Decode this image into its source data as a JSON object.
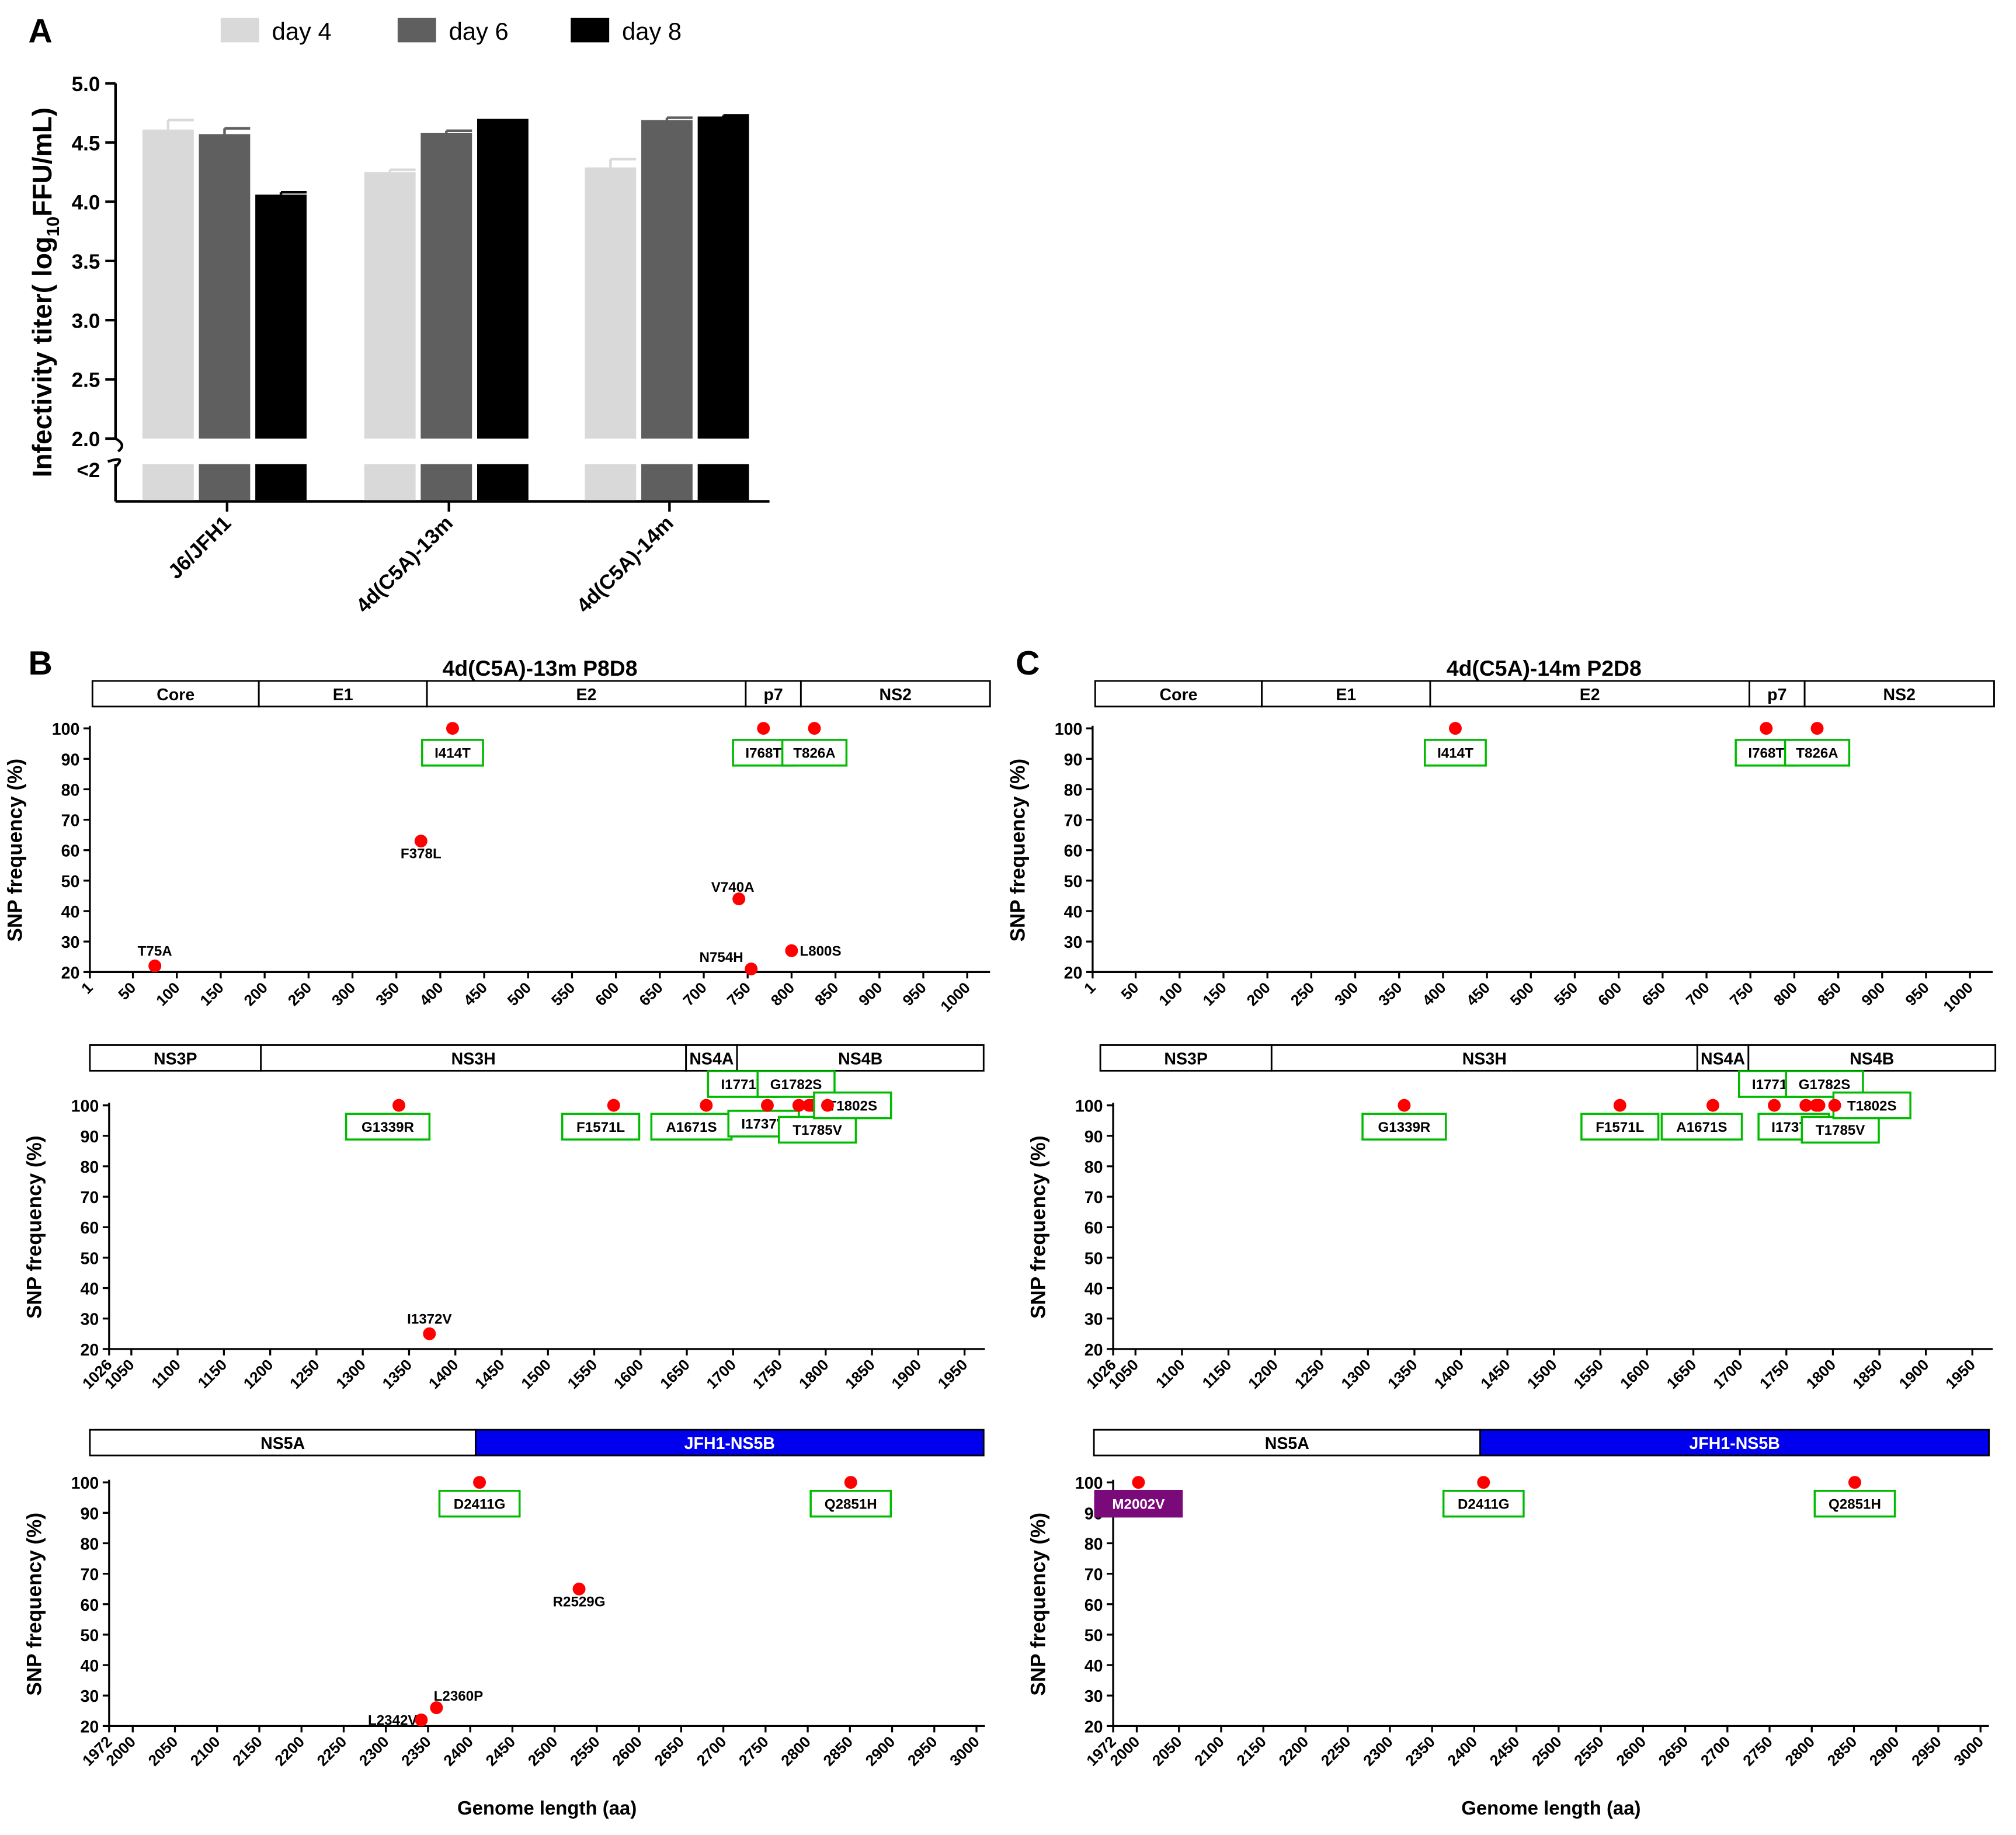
{
  "panel_a": {
    "letter": "A",
    "legend": [
      {
        "label": "day 4",
        "color": "#d9d9d9"
      },
      {
        "label": "day 6",
        "color": "#5f5f5f"
      },
      {
        "label": "day 8",
        "color": "#000000"
      }
    ],
    "ylabel_main": "Infectivity titer( log",
    "ylabel_sub": "10",
    "ylabel_end": "FFU/mL)",
    "lower_label": "<2",
    "chart_data": {
      "type": "bar",
      "categories": [
        "J6/JFH1",
        "4d(C5A)-13m",
        "4d(C5A)-14m"
      ],
      "series": [
        {
          "name": "day 4",
          "values": [
            4.61,
            4.25,
            4.29
          ],
          "errors": [
            0.08,
            0.02,
            0.07
          ]
        },
        {
          "name": "day 6",
          "values": [
            4.57,
            4.58,
            4.69
          ],
          "errors": [
            0.05,
            0.02,
            0.02
          ]
        },
        {
          "name": "day 8",
          "values": [
            4.06,
            4.7,
            4.72
          ],
          "errors": [
            0.02,
            0.0,
            0.01
          ]
        }
      ],
      "ylim": [
        2.0,
        5.0
      ],
      "yticks": [
        "2.0",
        "2.5",
        "3.0",
        "3.5",
        "4.0",
        "4.5",
        "5.0"
      ]
    }
  },
  "panel_b": {
    "letter": "B",
    "title": "4d(C5A)-13m P8D8"
  },
  "panel_c": {
    "letter": "C",
    "title": "4d(C5A)-14m P2D8"
  },
  "rows": [
    {
      "domains": [
        {
          "label": "Core",
          "start": 1,
          "end": 191
        },
        {
          "label": "E1",
          "start": 191,
          "end": 383
        },
        {
          "label": "E2",
          "start": 383,
          "end": 747
        },
        {
          "label": "p7",
          "start": 747,
          "end": 810
        },
        {
          "label": "NS2",
          "start": 810,
          "end": 1026
        }
      ],
      "xticks": [
        "1",
        "50",
        "100",
        "150",
        "200",
        "250",
        "300",
        "350",
        "400",
        "450",
        "500",
        "550",
        "600",
        "650",
        "700",
        "750",
        "800",
        "850",
        "900",
        "950",
        "1000"
      ],
      "xlim": [
        1,
        1026
      ]
    },
    {
      "domains": [
        {
          "label": "NS3P",
          "start": 1026,
          "end": 1207
        },
        {
          "label": "NS3H",
          "start": 1207,
          "end": 1657
        },
        {
          "label": "NS4A",
          "start": 1657,
          "end": 1711
        },
        {
          "label": "NS4B",
          "start": 1711,
          "end": 1972
        }
      ],
      "xticks": [
        "1026",
        "1050",
        "1100",
        "1150",
        "1200",
        "1250",
        "1300",
        "1350",
        "1400",
        "1450",
        "1500",
        "1550",
        "1600",
        "1650",
        "1700",
        "1750",
        "1800",
        "1850",
        "1900",
        "1950"
      ],
      "xlim": [
        1026,
        1972
      ]
    },
    {
      "domains": [
        {
          "label": "NS5A",
          "start": 1972,
          "end": 2420,
          "fill": "#ffffff",
          "text": "#000000"
        },
        {
          "label": "JFH1-NS5B",
          "start": 2420,
          "end": 3010,
          "fill": "#0000ee",
          "text": "#ffffff"
        }
      ],
      "xticks": [
        "1972",
        "2000",
        "2050",
        "2100",
        "2150",
        "2200",
        "2250",
        "2300",
        "2350",
        "2400",
        "2450",
        "2500",
        "2550",
        "2600",
        "2650",
        "2700",
        "2750",
        "2800",
        "2850",
        "2900",
        "2950",
        "3000"
      ],
      "xlim": [
        1972,
        3010
      ],
      "xlabel": "Genome length (aa)"
    }
  ],
  "ylabel": "SNP frequency (%)",
  "yticks": [
    "20",
    "30",
    "40",
    "50",
    "60",
    "70",
    "80",
    "90",
    "100"
  ],
  "ylim": [
    20,
    100
  ],
  "chart_data": [
    {
      "type": "scatter",
      "panel": "B",
      "points": [
        {
          "row": 0,
          "x": 414,
          "y": 100,
          "label": "I414T",
          "boxed": true,
          "lx": 414,
          "ly": 92,
          "lw": 76
        },
        {
          "row": 0,
          "x": 768,
          "y": 100,
          "label": "I768T",
          "boxed": true,
          "lx": 768,
          "ly": 92,
          "lw": 76
        },
        {
          "row": 0,
          "x": 826,
          "y": 100,
          "label": "T826A",
          "boxed": true,
          "lx": 826,
          "ly": 92,
          "lw": 80
        },
        {
          "row": 0,
          "x": 378,
          "y": 63,
          "label": "F378L",
          "lx": 378,
          "ly": 59
        },
        {
          "row": 0,
          "x": 740,
          "y": 44,
          "label": "V740A",
          "lx": 733,
          "ly": 48
        },
        {
          "row": 0,
          "x": 75,
          "y": 22,
          "label": "T75A",
          "lx": 75,
          "ly": 27
        },
        {
          "row": 0,
          "x": 754,
          "y": 21,
          "label": "N754H",
          "lx": 720,
          "ly": 25
        },
        {
          "row": 0,
          "x": 800,
          "y": 27,
          "label": "L800S",
          "lx": 833,
          "ly": 27
        },
        {
          "row": 1,
          "x": 1339,
          "y": 100,
          "label": "G1339R",
          "boxed": true,
          "lx": 1327,
          "ly": 93,
          "lw": 104
        },
        {
          "row": 1,
          "x": 1571,
          "y": 100,
          "label": "F1571L",
          "boxed": true,
          "lx": 1557,
          "ly": 93,
          "lw": 96
        },
        {
          "row": 1,
          "x": 1671,
          "y": 100,
          "label": "A1671S",
          "boxed": true,
          "lx": 1655,
          "ly": 93,
          "lw": 100
        },
        {
          "row": 1,
          "x": 1737,
          "y": 100,
          "label": "I1737V",
          "boxed": true,
          "lx": 1733,
          "ly": 94,
          "lw": 88
        },
        {
          "row": 1,
          "x": 1771,
          "y": 100,
          "label": "I1771V",
          "boxed": true,
          "lx": 1711,
          "ly": 107,
          "lw": 88
        },
        {
          "row": 1,
          "x": 1782,
          "y": 100,
          "label": "G1782S",
          "boxed": true,
          "lx": 1768,
          "ly": 107,
          "lw": 96
        },
        {
          "row": 1,
          "x": 1785,
          "y": 100,
          "label": "T1785V",
          "boxed": true,
          "lx": 1791,
          "ly": 92,
          "lw": 96
        },
        {
          "row": 1,
          "x": 1802,
          "y": 100,
          "label": "T1802S",
          "boxed": true,
          "lx": 1829,
          "ly": 100,
          "lw": 96
        },
        {
          "row": 1,
          "x": 1372,
          "y": 25,
          "label": "I1372V",
          "lx": 1372,
          "ly": 30
        },
        {
          "row": 2,
          "x": 2411,
          "y": 100,
          "label": "D2411G",
          "boxed": true,
          "lx": 2411,
          "ly": 93,
          "lw": 100
        },
        {
          "row": 2,
          "x": 2851,
          "y": 100,
          "label": "Q2851H",
          "boxed": true,
          "lx": 2851,
          "ly": 93,
          "lw": 100
        },
        {
          "row": 2,
          "x": 2529,
          "y": 65,
          "label": "R2529G",
          "lx": 2529,
          "ly": 61
        },
        {
          "row": 2,
          "x": 2360,
          "y": 26,
          "label": "L2360P",
          "lx": 2386,
          "ly": 30
        },
        {
          "row": 2,
          "x": 2342,
          "y": 22,
          "label": "L2342V",
          "lx": 2308,
          "ly": 22
        }
      ]
    },
    {
      "type": "scatter",
      "panel": "C",
      "points": [
        {
          "row": 0,
          "x": 414,
          "y": 100,
          "label": "I414T",
          "boxed": true,
          "lx": 414,
          "ly": 92,
          "lw": 76
        },
        {
          "row": 0,
          "x": 768,
          "y": 100,
          "label": "I768T",
          "boxed": true,
          "lx": 768,
          "ly": 92,
          "lw": 76
        },
        {
          "row": 0,
          "x": 826,
          "y": 100,
          "label": "T826A",
          "boxed": true,
          "lx": 826,
          "ly": 92,
          "lw": 80
        },
        {
          "row": 1,
          "x": 1339,
          "y": 100,
          "label": "G1339R",
          "boxed": true,
          "lx": 1339,
          "ly": 93,
          "lw": 104
        },
        {
          "row": 1,
          "x": 1571,
          "y": 100,
          "label": "F1571L",
          "boxed": true,
          "lx": 1571,
          "ly": 93,
          "lw": 96
        },
        {
          "row": 1,
          "x": 1671,
          "y": 100,
          "label": "A1671S",
          "boxed": true,
          "lx": 1659,
          "ly": 93,
          "lw": 100
        },
        {
          "row": 1,
          "x": 1737,
          "y": 100,
          "label": "I1737V",
          "boxed": true,
          "lx": 1758,
          "ly": 93,
          "lw": 88
        },
        {
          "row": 1,
          "x": 1771,
          "y": 100,
          "label": "I1771V",
          "boxed": true,
          "lx": 1737,
          "ly": 107,
          "lw": 88
        },
        {
          "row": 1,
          "x": 1782,
          "y": 100,
          "label": "G1782S",
          "boxed": true,
          "lx": 1791,
          "ly": 107,
          "lw": 96
        },
        {
          "row": 1,
          "x": 1785,
          "y": 100,
          "label": "T1785V",
          "boxed": true,
          "lx": 1808,
          "ly": 92,
          "lw": 96
        },
        {
          "row": 1,
          "x": 1802,
          "y": 100,
          "label": "T1802S",
          "boxed": true,
          "lx": 1842,
          "ly": 100,
          "lw": 96
        },
        {
          "row": 2,
          "x": 2411,
          "y": 100,
          "label": "D2411G",
          "boxed": true,
          "lx": 2411,
          "ly": 93,
          "lw": 100
        },
        {
          "row": 2,
          "x": 2851,
          "y": 100,
          "label": "Q2851H",
          "boxed": true,
          "lx": 2851,
          "ly": 93,
          "lw": 100
        },
        {
          "row": 2,
          "x": 2002,
          "y": 100,
          "label": "M2002V",
          "purple": true,
          "lx": 2002,
          "ly": 93,
          "lw": 108
        }
      ]
    }
  ],
  "colors": {
    "point": "#ff0000",
    "label_box": "#00bb00",
    "highlight": "#7a0a7a"
  }
}
